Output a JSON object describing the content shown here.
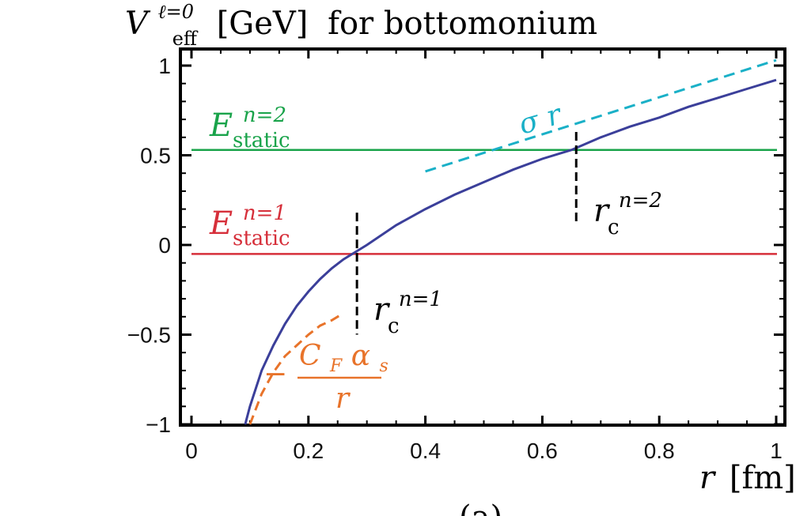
{
  "chart_data": {
    "type": "line",
    "title": {
      "symbol": "V",
      "superscript": "ℓ=0",
      "subscript": "eff",
      "unit": "[GeV]",
      "suffix": "for bottomonium"
    },
    "xlabel": {
      "symbol": "r",
      "unit": "[fm]"
    },
    "xlim": [
      -0.01,
      1.01
    ],
    "ylim": [
      -1.0,
      1.1
    ],
    "x_ticks": [
      0,
      0.2,
      0.4,
      0.6,
      0.8,
      1
    ],
    "x_tick_labels": [
      "0",
      "0.2",
      "0.4",
      "0.6",
      "0.8",
      "1"
    ],
    "y_ticks": [
      -1,
      -0.5,
      0,
      0.5,
      1
    ],
    "y_tick_labels": [
      "−1",
      "−0.5",
      "0",
      "0.5",
      "1"
    ],
    "caption_partial": "(a)",
    "colors": {
      "potential": "#3b3f9a",
      "coulomb": "#e8732a",
      "linear": "#1ab0c7",
      "level_n1": "#d62f3a",
      "level_n2": "#19a34a",
      "marker": "#000000"
    },
    "series": {
      "potential": {
        "x": [
          0.0919,
          0.1,
          0.12,
          0.14,
          0.16,
          0.18,
          0.2,
          0.22,
          0.24,
          0.26,
          0.28,
          0.3,
          0.35,
          0.4,
          0.45,
          0.5,
          0.55,
          0.6,
          0.65,
          0.7,
          0.75,
          0.8,
          0.85,
          0.9,
          0.95,
          1.0
        ],
        "y": [
          -1.0,
          -0.9,
          -0.7,
          -0.56,
          -0.44,
          -0.34,
          -0.26,
          -0.19,
          -0.13,
          -0.08,
          -0.04,
          0.0,
          0.11,
          0.2,
          0.28,
          0.35,
          0.42,
          0.48,
          0.53,
          0.6,
          0.66,
          0.71,
          0.77,
          0.82,
          0.87,
          0.92
        ]
      },
      "coulomb": {
        "x": [
          0.1,
          0.12,
          0.14,
          0.16,
          0.18,
          0.2,
          0.22,
          0.24,
          0.26
        ],
        "y": [
          -1.0,
          -0.83,
          -0.71,
          -0.62,
          -0.56,
          -0.5,
          -0.45,
          -0.42,
          -0.38
        ]
      },
      "linear": {
        "x": [
          0.4,
          1.0
        ],
        "y": [
          0.41,
          1.03
        ]
      },
      "levels": [
        {
          "name_symbol": "E",
          "superscript": "n=1",
          "subscript": "static",
          "y": -0.05
        },
        {
          "name_symbol": "E",
          "superscript": "n=2",
          "subscript": "static",
          "y": 0.53
        }
      ],
      "markers": [
        {
          "x": 0.283,
          "y0": -0.5,
          "y1": 0.18,
          "label_symbol": "r",
          "label_subscript": "c",
          "label_superscript": "n=1"
        },
        {
          "x": 0.658,
          "y0": 0.11,
          "y1": 0.63,
          "label_symbol": "r",
          "label_subscript": "c",
          "label_superscript": "n=2"
        }
      ]
    },
    "annotations": {
      "linear_label": "σ r",
      "coulomb_label": {
        "prefix": "−",
        "numerator": "C",
        "numerator_sub": "F",
        "numerator_symbol": "α",
        "numerator_symbol_sub": "s",
        "denominator": "r"
      }
    }
  }
}
